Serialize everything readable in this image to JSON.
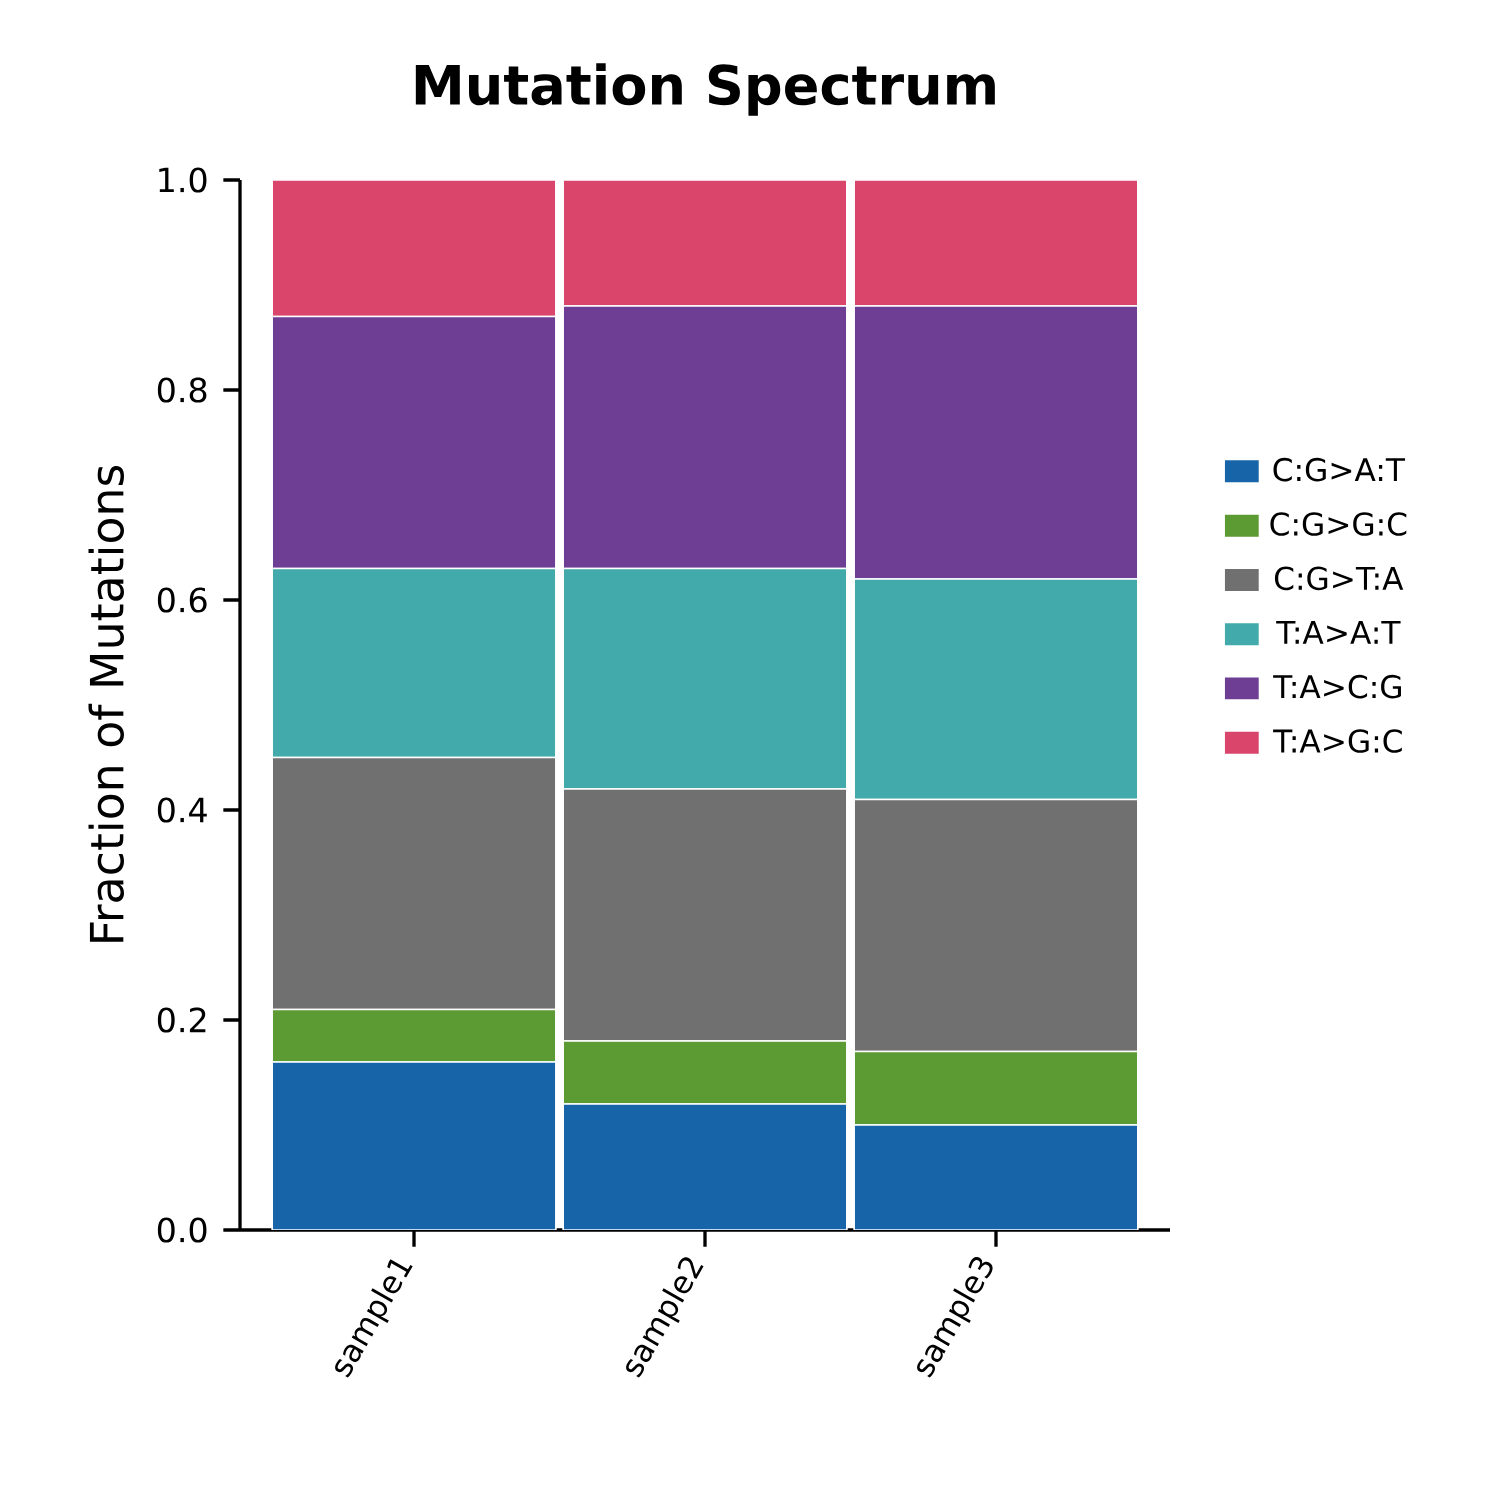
{
  "chart_data": {
    "type": "bar",
    "stacked": true,
    "title": "Mutation Spectrum",
    "ylabel": "Fraction of Mutations",
    "categories": [
      "sample1",
      "sample2",
      "sample3"
    ],
    "series": [
      {
        "name": "C:G>A:T",
        "color": "#1764a8",
        "values": [
          0.16,
          0.12,
          0.1
        ]
      },
      {
        "name": "C:G>G:C",
        "color": "#5c9a33",
        "values": [
          0.05,
          0.06,
          0.07
        ]
      },
      {
        "name": "C:G>T:A",
        "color": "#707070",
        "values": [
          0.24,
          0.24,
          0.24
        ]
      },
      {
        "name": "T:A>A:T",
        "color": "#43aaab",
        "values": [
          0.18,
          0.21,
          0.21
        ]
      },
      {
        "name": "T:A>C:G",
        "color": "#6e3d94",
        "values": [
          0.24,
          0.25,
          0.26
        ]
      },
      {
        "name": "T:A>G:C",
        "color": "#d9456b",
        "values": [
          0.13,
          0.12,
          0.12
        ]
      }
    ],
    "ylim": [
      0,
      1
    ],
    "yticks": [
      {
        "value": 0,
        "label": "0.0"
      },
      {
        "value": 0.2,
        "label": "0.2"
      },
      {
        "value": 0.4,
        "label": "0.4"
      },
      {
        "value": 0.6,
        "label": "0.6"
      },
      {
        "value": 0.8,
        "label": "0.8"
      },
      {
        "value": 1,
        "label": "1.0"
      }
    ],
    "legend": "right"
  }
}
